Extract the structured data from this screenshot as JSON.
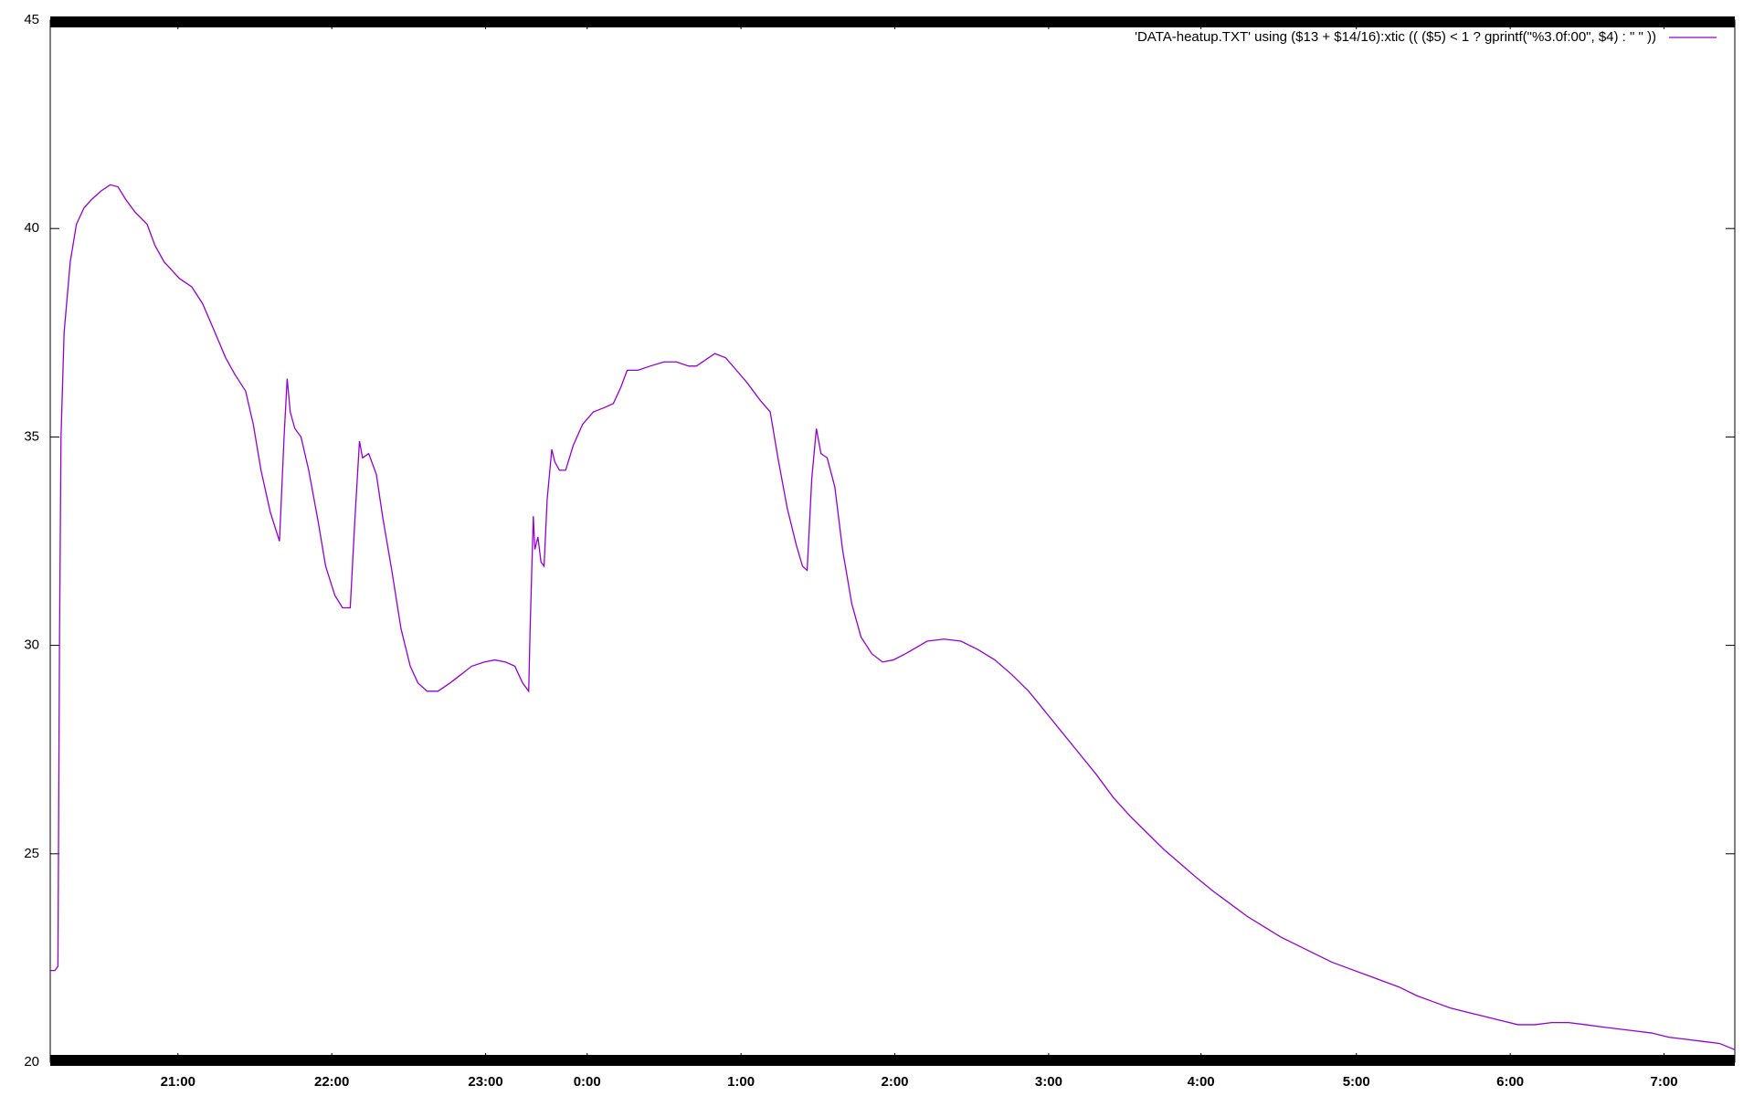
{
  "chart_data": {
    "type": "line",
    "grid": false,
    "legend_position": "top-right",
    "xlim": [
      20.17,
      31.12
    ],
    "xticks": [
      {
        "value": 21,
        "label": "21:00"
      },
      {
        "value": 22,
        "label": "22:00"
      },
      {
        "value": 23,
        "label": "23:00"
      },
      {
        "value": 23.66,
        "label": "0:00"
      },
      {
        "value": 24.66,
        "label": "1:00"
      },
      {
        "value": 25.66,
        "label": "2:00"
      },
      {
        "value": 26.66,
        "label": "3:00"
      },
      {
        "value": 27.65,
        "label": "4:00"
      },
      {
        "value": 28.66,
        "label": "5:00"
      },
      {
        "value": 29.66,
        "label": "6:00"
      },
      {
        "value": 30.66,
        "label": "7:00"
      }
    ],
    "ylim": [
      20,
      45
    ],
    "yticks": [
      20,
      25,
      30,
      35,
      40,
      45
    ],
    "x": [
      20.17,
      20.2,
      20.22,
      20.23,
      20.24,
      20.26,
      20.3,
      20.34,
      20.39,
      20.44,
      20.5,
      20.56,
      20.61,
      20.66,
      20.72,
      20.8,
      20.85,
      20.91,
      20.96,
      21.01,
      21.09,
      21.16,
      21.23,
      21.31,
      21.37,
      21.44,
      21.49,
      21.54,
      21.6,
      21.66,
      21.69,
      21.71,
      21.73,
      21.76,
      21.8,
      21.85,
      21.91,
      21.96,
      22.02,
      22.07,
      22.12,
      22.15,
      22.18,
      22.2,
      22.24,
      22.29,
      22.33,
      22.39,
      22.45,
      22.51,
      22.56,
      22.62,
      22.69,
      22.77,
      22.84,
      22.91,
      22.99,
      23.06,
      23.13,
      23.19,
      23.24,
      23.28,
      23.29,
      23.31,
      23.32,
      23.34,
      23.36,
      23.38,
      23.4,
      23.43,
      23.45,
      23.48,
      23.52,
      23.57,
      23.63,
      23.7,
      23.77,
      23.83,
      23.88,
      23.92,
      23.99,
      24.07,
      24.16,
      24.24,
      24.32,
      24.37,
      24.43,
      24.49,
      24.56,
      24.63,
      24.7,
      24.78,
      24.85,
      24.9,
      24.96,
      25.02,
      25.06,
      25.09,
      25.12,
      25.15,
      25.18,
      25.22,
      25.27,
      25.32,
      25.38,
      25.44,
      25.51,
      25.58,
      25.65,
      25.73,
      25.8,
      25.87,
      25.98,
      26.09,
      26.2,
      26.31,
      26.42,
      26.53,
      26.64,
      26.75,
      26.86,
      26.97,
      27.08,
      27.19,
      27.3,
      27.41,
      27.52,
      27.63,
      27.73,
      27.84,
      27.95,
      28.06,
      28.17,
      28.28,
      28.39,
      28.5,
      28.61,
      28.72,
      28.83,
      28.94,
      29.05,
      29.16,
      29.27,
      29.38,
      29.49,
      29.6,
      29.71,
      29.82,
      29.93,
      30.04,
      30.15,
      30.25,
      30.36,
      30.47,
      30.58,
      30.69,
      30.8,
      30.91,
      31.02,
      31.12
    ],
    "series": [
      {
        "name": "'DATA-heatup.TXT' using ($13 + $14/16):xtic (( ($5) < 1 ? gprintf(\"%3.0f:00\", $4) : \" \" ))",
        "color": "#9400d3",
        "values": [
          22.2,
          22.2,
          22.3,
          30,
          35,
          37.5,
          39.2,
          40.1,
          40.5,
          40.7,
          40.9,
          41.05,
          41.0,
          40.7,
          40.4,
          40.1,
          39.6,
          39.2,
          39.0,
          38.8,
          38.6,
          38.2,
          37.6,
          36.9,
          36.5,
          36.1,
          35.3,
          34.2,
          33.2,
          32.5,
          35.0,
          36.4,
          35.6,
          35.2,
          35.0,
          34.2,
          33.0,
          31.9,
          31.2,
          30.9,
          30.9,
          33.0,
          34.9,
          34.5,
          34.6,
          34.1,
          33.1,
          31.8,
          30.4,
          29.5,
          29.1,
          28.9,
          28.9,
          29.1,
          29.3,
          29.5,
          29.6,
          29.65,
          29.6,
          29.5,
          29.1,
          28.9,
          30.5,
          33.1,
          32.3,
          32.6,
          32.0,
          31.9,
          33.5,
          34.7,
          34.4,
          34.2,
          34.2,
          34.8,
          35.3,
          35.6,
          35.7,
          35.8,
          36.2,
          36.6,
          36.6,
          36.7,
          36.8,
          36.8,
          36.7,
          36.7,
          36.85,
          37.0,
          36.9,
          36.6,
          36.3,
          35.9,
          35.6,
          34.5,
          33.3,
          32.4,
          31.9,
          31.8,
          34.0,
          35.2,
          34.6,
          34.5,
          33.8,
          32.3,
          31.0,
          30.2,
          29.8,
          29.6,
          29.65,
          29.8,
          29.95,
          30.1,
          30.15,
          30.1,
          29.9,
          29.65,
          29.3,
          28.9,
          28.4,
          27.9,
          27.4,
          26.9,
          26.35,
          25.9,
          25.5,
          25.1,
          24.75,
          24.4,
          24.1,
          23.8,
          23.5,
          23.25,
          23.0,
          22.8,
          22.6,
          22.4,
          22.25,
          22.1,
          21.95,
          21.8,
          21.6,
          21.45,
          21.3,
          21.2,
          21.1,
          21.0,
          20.9,
          20.9,
          20.95,
          20.95,
          20.9,
          20.85,
          20.8,
          20.75,
          20.7,
          20.6,
          20.55,
          20.5,
          20.45,
          20.3
        ]
      }
    ]
  }
}
